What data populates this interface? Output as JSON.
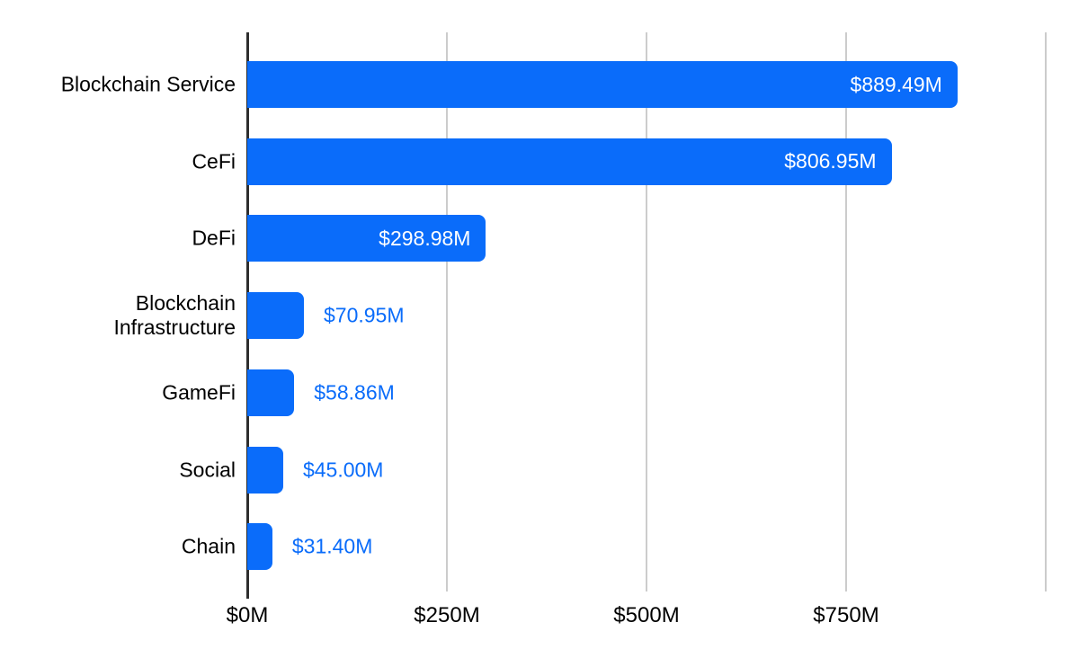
{
  "chart_data": {
    "type": "bar",
    "orientation": "horizontal",
    "title": "",
    "categories": [
      "Blockchain Service",
      "CeFi",
      "DeFi",
      "Blockchain Infrastructure",
      "GameFi",
      "Social",
      "Chain"
    ],
    "values": [
      889.49,
      806.95,
      298.98,
      70.95,
      58.86,
      45.0,
      31.4
    ],
    "value_labels": [
      "$889.49M",
      "$806.95M",
      "$298.98M",
      "$70.95M",
      "$58.86M",
      "$45.00M",
      "$31.40M"
    ],
    "value_label_placement": [
      "inside",
      "inside",
      "inside",
      "outside",
      "outside",
      "outside",
      "outside"
    ],
    "x_axis": {
      "range": [
        0,
        1000
      ],
      "unit": "USD millions",
      "ticks": [
        {
          "value": 0,
          "label": "$0M"
        },
        {
          "value": 250,
          "label": "$250M"
        },
        {
          "value": 500,
          "label": "$500M"
        },
        {
          "value": 750,
          "label": "$750M"
        }
      ],
      "gridline_values": [
        250,
        500,
        750,
        1000
      ]
    },
    "grid": "vertical-only",
    "legend": null,
    "colors": {
      "bar": "#0a6cfa",
      "value_label_inside": "#ffffff",
      "value_label_outside": "#0a6cfa",
      "category_label": "#000000",
      "axis_line": "#2e2e2e",
      "gridline": "#cccccc",
      "background": "#ffffff"
    }
  }
}
